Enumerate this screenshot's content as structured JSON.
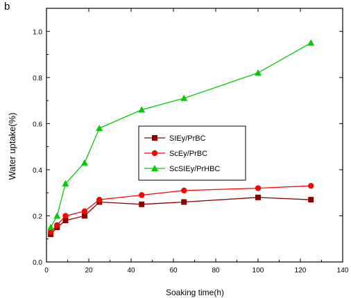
{
  "panel_label": "b",
  "chart_data": {
    "type": "line",
    "title": "",
    "xlabel": "Soaking time(h)",
    "ylabel": "Water uptake(%)",
    "xlim": [
      0,
      140
    ],
    "ylim": [
      0.0,
      1.1
    ],
    "x_ticks": [
      0,
      20,
      40,
      60,
      80,
      100,
      120,
      140
    ],
    "x_tick_labels": [
      "0",
      "20",
      "40",
      "60",
      "80",
      "100",
      "120",
      "140"
    ],
    "y_ticks": [
      0.0,
      0.2,
      0.4,
      0.6,
      0.8,
      1.0
    ],
    "y_tick_labels": [
      "0.0",
      "0.2",
      "0.4",
      "0.6",
      "0.8",
      "1.0"
    ],
    "grid": false,
    "legend_position": "center",
    "x": [
      2,
      5,
      9,
      18,
      25,
      45,
      65,
      100,
      125
    ],
    "series": [
      {
        "name": "SIEy/PrBC",
        "color": "#8b0000",
        "marker": "square",
        "values": [
          0.12,
          0.15,
          0.18,
          0.2,
          0.26,
          0.25,
          0.26,
          0.28,
          0.27
        ]
      },
      {
        "name": "ScEy/PrBC",
        "color": "#ff0000",
        "marker": "circle",
        "values": [
          0.13,
          0.16,
          0.2,
          0.22,
          0.27,
          0.29,
          0.31,
          0.32,
          0.33
        ]
      },
      {
        "name": "ScSIEy/PrHBC",
        "color": "#00cc00",
        "marker": "triangle",
        "values": [
          0.15,
          0.2,
          0.34,
          0.43,
          0.58,
          0.66,
          0.71,
          0.82,
          0.95
        ]
      }
    ]
  }
}
